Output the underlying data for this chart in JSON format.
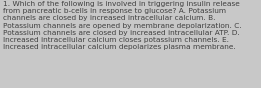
{
  "text": "1. Which of the following is involved in triggering insulin release\nfrom pancreatic b-cells in response to glucose? A. Potassium\nchannels are closed by increased intracellular calcium. B.\nPotassium channels are opened by membrane depolarization. C.\nPotassium channels are closed by increased intracellular ATP. D.\nIncreased intracellular calcium closes potassium channels. E.\nIncreased intracellular calcium depolarizes plasma membrane.",
  "font_size": 5.3,
  "text_color": "#404040",
  "background_color": "#c8c8c8",
  "fig_width": 2.61,
  "fig_height": 0.88,
  "dpi": 100
}
